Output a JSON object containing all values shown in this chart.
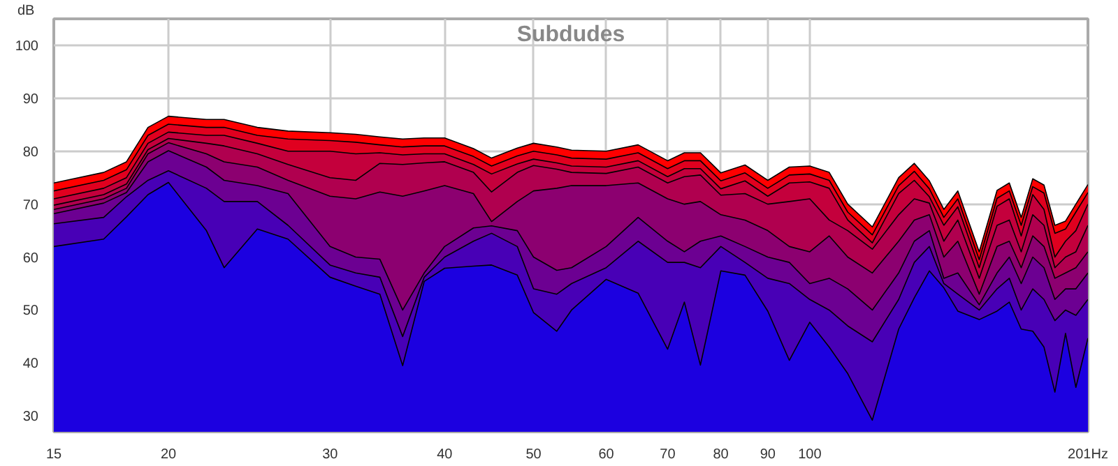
{
  "chart_data": {
    "type": "area",
    "title": "Subdudes",
    "ylabel": "dB",
    "log": "x",
    "grid": true,
    "xlim": [
      15,
      201
    ],
    "ylim": [
      27,
      105
    ],
    "xticks": [
      15,
      20,
      30,
      40,
      50,
      60,
      70,
      80,
      90,
      100,
      {
        "value": 201,
        "label": "201Hz"
      }
    ],
    "yticks": [
      30,
      40,
      50,
      60,
      70,
      80,
      90,
      100
    ],
    "x": [
      15,
      17,
      18,
      19,
      20,
      22,
      23,
      25,
      27,
      30,
      32,
      34,
      36,
      38,
      40,
      43,
      45,
      48,
      50,
      53,
      55,
      60,
      65,
      70,
      73,
      76,
      80,
      85,
      90,
      95,
      100,
      105,
      110,
      117,
      125,
      130,
      135,
      140,
      145,
      153,
      160,
      165,
      170,
      175,
      180,
      185,
      190,
      195,
      201
    ],
    "series": [
      {
        "color": "#ff0000",
        "values": [
          74,
          76,
          78,
          84.5,
          86.6,
          86,
          86,
          84.5,
          83.8,
          83.5,
          83.2,
          82.7,
          82.3,
          82.5,
          82.5,
          80.5,
          78.7,
          80.6,
          81.5,
          80.8,
          80.2,
          80,
          81.2,
          78.2,
          79.7,
          79.7,
          75.9,
          77.4,
          74.5,
          77,
          77.2,
          76,
          70,
          65.7,
          75,
          77.7,
          74.4,
          69,
          72.5,
          61,
          72.6,
          74,
          67.5,
          74.8,
          73.6,
          66,
          66.8,
          70,
          73.7
        ]
      },
      {
        "color": "#e0001f",
        "values": [
          72.5,
          74.5,
          76.5,
          83,
          85.1,
          84.5,
          84.5,
          83,
          82.3,
          82,
          81.7,
          81.2,
          80.8,
          81,
          81,
          79,
          77.2,
          79.1,
          80,
          79.3,
          78.7,
          78.5,
          79.7,
          76.7,
          78.2,
          78.2,
          74.4,
          75.9,
          73,
          75.5,
          75.7,
          74.5,
          68.5,
          64.2,
          73.5,
          76.2,
          72.9,
          67.5,
          71,
          59.5,
          71.1,
          72.5,
          66,
          73.3,
          72.1,
          64.5,
          65.3,
          68.5,
          72.2
        ]
      },
      {
        "color": "#c4003c",
        "values": [
          71,
          73,
          75,
          81.5,
          83.6,
          83,
          83,
          81.5,
          80,
          80,
          79.5,
          79.7,
          79.3,
          79.5,
          79.5,
          77.5,
          75.7,
          77.6,
          78.5,
          77.8,
          77.2,
          77,
          78.2,
          75.2,
          76.7,
          76.7,
          72.9,
          74.4,
          71.5,
          74,
          74.2,
          73,
          67,
          62.7,
          72,
          74.5,
          71.4,
          66,
          69.5,
          58,
          69.6,
          71,
          64,
          71.8,
          69,
          60,
          63,
          65,
          70
        ]
      },
      {
        "color": "#b0004f",
        "values": [
          69.8,
          71.8,
          73.8,
          80.3,
          82.4,
          81.5,
          81,
          79.5,
          77.5,
          75,
          74.5,
          77.7,
          77.5,
          77.8,
          78,
          76,
          72.3,
          76,
          77.3,
          76.6,
          76,
          75.8,
          77,
          74,
          75.2,
          75.5,
          71.7,
          72,
          70,
          70.5,
          71,
          67,
          65,
          61.5,
          68,
          71,
          70.2,
          63,
          67,
          56,
          66,
          67,
          61,
          68,
          66,
          58,
          60,
          61,
          66
        ]
      },
      {
        "color": "#8c0070",
        "values": [
          69,
          71,
          73,
          79.5,
          81.6,
          79.5,
          78,
          77,
          74.5,
          71.5,
          71,
          72.3,
          71.5,
          72.5,
          73.5,
          72,
          66.7,
          70.5,
          72.5,
          73,
          73.5,
          73.5,
          74,
          71,
          70,
          70.5,
          68,
          67,
          65,
          62,
          61,
          64,
          60,
          57,
          63,
          67,
          68,
          60,
          63,
          53,
          62,
          63,
          58,
          64,
          62,
          56,
          57,
          58,
          61
        ]
      },
      {
        "color": "#6c0092",
        "values": [
          68.2,
          70.2,
          72.2,
          78,
          80.1,
          77,
          74.5,
          73.5,
          72,
          62,
          60,
          59.6,
          50,
          57,
          62,
          65.5,
          65.9,
          65,
          60,
          57.5,
          58,
          62,
          67.5,
          63,
          61,
          63,
          64,
          62,
          60,
          59,
          55,
          56,
          54,
          50,
          57,
          63,
          65,
          56,
          57,
          51,
          57,
          60,
          55,
          60,
          58,
          52,
          54,
          54,
          57
        ]
      },
      {
        "color": "#4800b6",
        "values": [
          66.3,
          67.5,
          71.4,
          74.5,
          76.3,
          73,
          70.5,
          70.5,
          66,
          58.5,
          57,
          56.2,
          45,
          56.2,
          60,
          63,
          64.5,
          62,
          54,
          53,
          55,
          58,
          63,
          59,
          59,
          58,
          62,
          59,
          56,
          55,
          52,
          50,
          47,
          44,
          52,
          59,
          62,
          55,
          53,
          50,
          54,
          56,
          50,
          54,
          52,
          48,
          50,
          49,
          52
        ]
      },
      {
        "color": "#1c00e0",
        "values": [
          62,
          63.4,
          67.6,
          71.8,
          74.1,
          65,
          58,
          65.3,
          63.4,
          56.2,
          54.5,
          53,
          39.5,
          55.4,
          57.9,
          58.3,
          58.5,
          56.6,
          49.5,
          46,
          50,
          55.8,
          53.2,
          42.6,
          51.5,
          39.6,
          57.4,
          56.6,
          49.8,
          40.5,
          47.7,
          43,
          38,
          29.2,
          46.4,
          52.3,
          57.4,
          54.2,
          49.8,
          48.2,
          49.8,
          51.5,
          46.4,
          46,
          43,
          34.5,
          45.6,
          35.4,
          44.7
        ]
      }
    ]
  }
}
